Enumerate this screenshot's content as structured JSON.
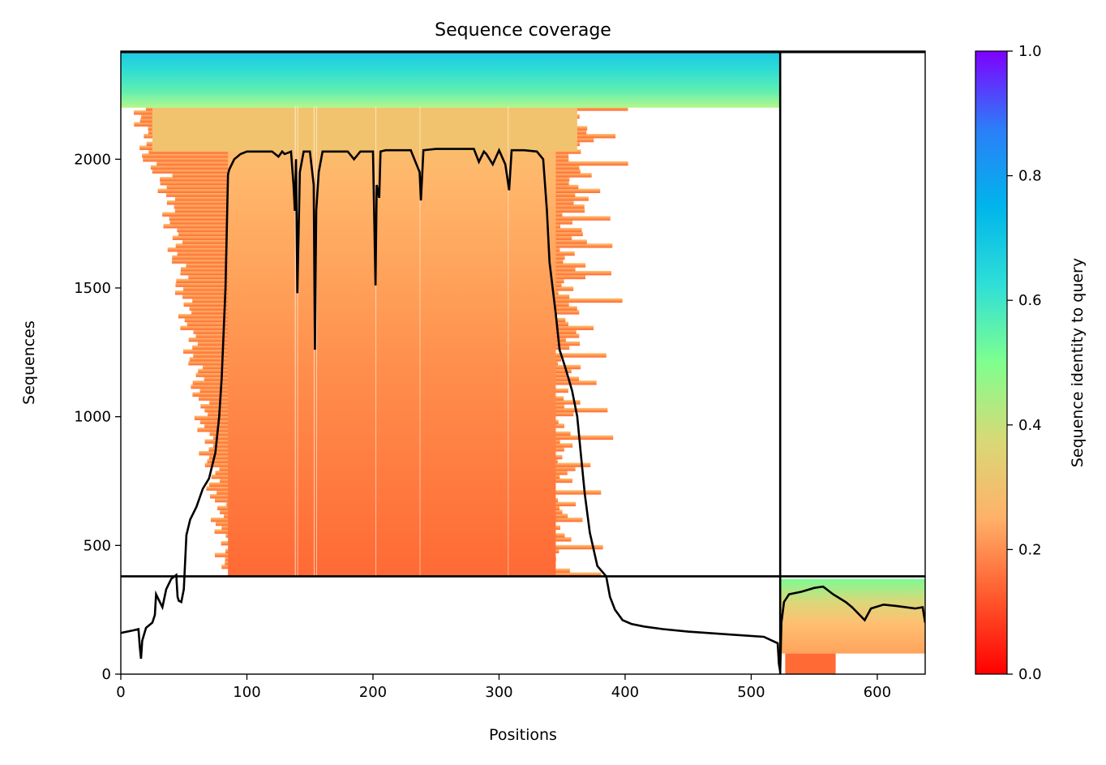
{
  "chart_data": {
    "type": "heatmap",
    "title": "Sequence coverage",
    "xlabel": "Positions",
    "ylabel": "Sequences",
    "xlim": [
      0,
      638
    ],
    "ylim": [
      0,
      2420
    ],
    "x_ticks": [
      0,
      100,
      200,
      300,
      400,
      500,
      600
    ],
    "y_ticks": [
      0,
      500,
      1000,
      1500,
      2000
    ],
    "grid": false,
    "colorbar": {
      "label": "Sequence identity to query",
      "range": [
        0,
        1
      ],
      "ticks": [
        "0.0",
        "0.2",
        "0.4",
        "0.6",
        "0.8",
        "1.0"
      ],
      "colormap": "rainbow_r",
      "colors": [
        "#ff0000",
        "#ff5a2e",
        "#ffb169",
        "#d8d976",
        "#7fff8e",
        "#2fdfd7",
        "#00b5eb",
        "#2c7ef8",
        "#7f00ff"
      ]
    },
    "chain_boundary": {
      "position": 523,
      "sequences": 380
    },
    "coverage_line": {
      "x": [
        0,
        10,
        14,
        15,
        16,
        17,
        20,
        25,
        27,
        28,
        30,
        33,
        36,
        40,
        44,
        45,
        46,
        48,
        50,
        52,
        55,
        60,
        65,
        70,
        75,
        78,
        80,
        83,
        85,
        86,
        90,
        95,
        100,
        110,
        120,
        125,
        128,
        130,
        135,
        137,
        138,
        139,
        140,
        142,
        145,
        150,
        153,
        154,
        155,
        157,
        160,
        170,
        180,
        185,
        190,
        200,
        202,
        203,
        205,
        206,
        210,
        220,
        230,
        237,
        238,
        240,
        250,
        260,
        270,
        280,
        284,
        288,
        290,
        295,
        300,
        305,
        308,
        310,
        320,
        330,
        335,
        338,
        340,
        345,
        348,
        352,
        355,
        358,
        362,
        365,
        368,
        372,
        378,
        385,
        388,
        392,
        398,
        405,
        415,
        430,
        450,
        480,
        510,
        521,
        522,
        523,
        524,
        526,
        530,
        540,
        550,
        557,
        565,
        575,
        580,
        590,
        595,
        605,
        615,
        630,
        636,
        638
      ],
      "y": [
        160,
        170,
        175,
        110,
        60,
        130,
        180,
        200,
        230,
        310,
        290,
        260,
        330,
        370,
        385,
        300,
        285,
        280,
        330,
        540,
        600,
        650,
        720,
        760,
        860,
        1000,
        1150,
        1500,
        1940,
        1960,
        2000,
        2020,
        2030,
        2030,
        2030,
        2010,
        2030,
        2020,
        2030,
        1900,
        1800,
        2000,
        1480,
        1950,
        2030,
        2030,
        1900,
        1260,
        1800,
        1950,
        2030,
        2030,
        2030,
        2000,
        2030,
        2030,
        1510,
        1900,
        1850,
        2030,
        2035,
        2035,
        2035,
        1950,
        1840,
        2035,
        2040,
        2040,
        2040,
        2040,
        1990,
        2030,
        2020,
        1980,
        2035,
        1980,
        1880,
        2035,
        2035,
        2030,
        2000,
        1800,
        1600,
        1400,
        1260,
        1200,
        1150,
        1100,
        1000,
        850,
        700,
        550,
        420,
        380,
        300,
        250,
        210,
        195,
        185,
        175,
        165,
        155,
        145,
        120,
        40,
        10,
        200,
        280,
        310,
        320,
        335,
        340,
        310,
        280,
        260,
        210,
        255,
        270,
        265,
        255,
        260,
        200
      ]
    }
  }
}
